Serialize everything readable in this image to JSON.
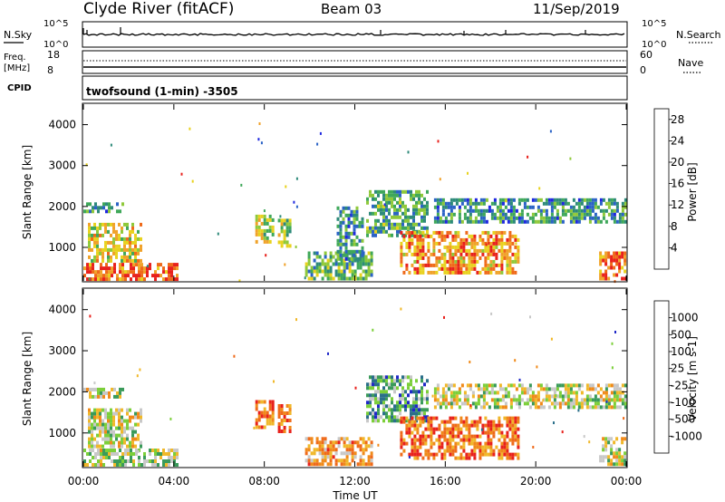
{
  "header": {
    "station": "Clyde River (fitACF)",
    "beam": "Beam 03",
    "date": "11/Sep/2019"
  },
  "noise_panel": {
    "left_label": "N.Sky",
    "right_label": "N.Search",
    "left_ticks": [
      "10^5",
      "10^0"
    ],
    "right_ticks": [
      "10^5",
      "10^0"
    ]
  },
  "freq_panel": {
    "left_label_1": "Freq.",
    "left_label_2": "[MHz]",
    "right_label": "Nave",
    "left_ticks": [
      "18",
      "8"
    ],
    "right_ticks": [
      "60",
      "0"
    ],
    "cpid_label": "CPID",
    "cpid_text": "twofsound (1-min) -3505"
  },
  "x_axis": {
    "label": "Time UT",
    "ticks": [
      "00:00",
      "04:00",
      "08:00",
      "12:00",
      "16:00",
      "20:00",
      "00:00"
    ]
  },
  "chart_data": [
    {
      "type": "heatmap",
      "ylabel": "Slant Range [km]",
      "yticks": [
        1000,
        2000,
        3000,
        4000
      ],
      "ylim": [
        180,
        4500
      ],
      "xlim_hours": [
        0,
        24
      ],
      "colorbar": {
        "label": "Power [dB]",
        "ticks": [
          "4",
          "8",
          "12",
          "16",
          "20",
          "24",
          "28"
        ],
        "range": [
          0,
          30
        ],
        "colors": [
          "#1f28e0",
          "#2b63c6",
          "#2e8a7a",
          "#3fa85a",
          "#8fc93a",
          "#e8d21e",
          "#f0a22a",
          "#ef6a1a",
          "#e8211c"
        ]
      },
      "regions": [
        {
          "t0": 0.0,
          "t1": 4.2,
          "r0": 200,
          "r1": 620,
          "level": 0.85
        },
        {
          "t0": 0.2,
          "t1": 2.6,
          "r0": 700,
          "r1": 1600,
          "level": 0.6
        },
        {
          "t0": 0.0,
          "t1": 1.8,
          "r0": 1850,
          "r1": 2100,
          "level": 0.3
        },
        {
          "t0": 7.6,
          "t1": 8.4,
          "r0": 1100,
          "r1": 1800,
          "level": 0.55
        },
        {
          "t0": 8.6,
          "t1": 9.2,
          "r0": 1000,
          "r1": 1700,
          "level": 0.5
        },
        {
          "t0": 9.8,
          "t1": 12.8,
          "r0": 250,
          "r1": 900,
          "level": 0.4
        },
        {
          "t0": 11.2,
          "t1": 12.4,
          "r0": 700,
          "r1": 2000,
          "level": 0.3
        },
        {
          "t0": 12.5,
          "t1": 15.2,
          "r0": 1300,
          "r1": 2400,
          "level": 0.35
        },
        {
          "t0": 14.0,
          "t1": 19.2,
          "r0": 350,
          "r1": 1400,
          "level": 0.75
        },
        {
          "t0": 15.5,
          "t1": 24.0,
          "r0": 1600,
          "r1": 2200,
          "level": 0.3
        },
        {
          "t0": 22.8,
          "t1": 24.0,
          "r0": 200,
          "r1": 900,
          "level": 0.85
        }
      ]
    },
    {
      "type": "heatmap",
      "ylabel": "Slant Range [km]",
      "yticks": [
        1000,
        2000,
        3000,
        4000
      ],
      "ylim": [
        180,
        4500
      ],
      "xlim_hours": [
        0,
        24
      ],
      "colorbar": {
        "label": "Velocity [m s-1]",
        "ticks": [
          "1000",
          "500",
          "100",
          "25",
          "-25",
          "-100",
          "-500",
          "-1000"
        ],
        "range": [
          -1000,
          1000
        ],
        "colors": [
          "#1f28c8",
          "#2a6f8a",
          "#3a9a5a",
          "#7ccf3a",
          "#c8c8c8",
          "#f0b82a",
          "#f08a1a",
          "#ef6a1a",
          "#e8211c"
        ]
      },
      "regions": [
        {
          "t0": 0.0,
          "t1": 4.2,
          "r0": 200,
          "r1": 620,
          "level": 0.45
        },
        {
          "t0": 0.2,
          "t1": 2.6,
          "r0": 700,
          "r1": 1600,
          "level": 0.5
        },
        {
          "t0": 0.0,
          "t1": 1.8,
          "r0": 1850,
          "r1": 2100,
          "level": 0.5
        },
        {
          "t0": 7.6,
          "t1": 8.4,
          "r0": 1100,
          "r1": 1800,
          "level": 0.78
        },
        {
          "t0": 8.6,
          "t1": 9.2,
          "r0": 1000,
          "r1": 1700,
          "level": 0.78
        },
        {
          "t0": 9.8,
          "t1": 12.8,
          "r0": 250,
          "r1": 900,
          "level": 0.7
        },
        {
          "t0": 12.5,
          "t1": 15.2,
          "r0": 1300,
          "r1": 2400,
          "level": 0.28
        },
        {
          "t0": 14.0,
          "t1": 19.2,
          "r0": 350,
          "r1": 1400,
          "level": 0.8
        },
        {
          "t0": 15.5,
          "t1": 24.0,
          "r0": 1600,
          "r1": 2200,
          "level": 0.5
        },
        {
          "t0": 22.8,
          "t1": 24.0,
          "r0": 200,
          "r1": 900,
          "level": 0.5
        }
      ]
    }
  ]
}
